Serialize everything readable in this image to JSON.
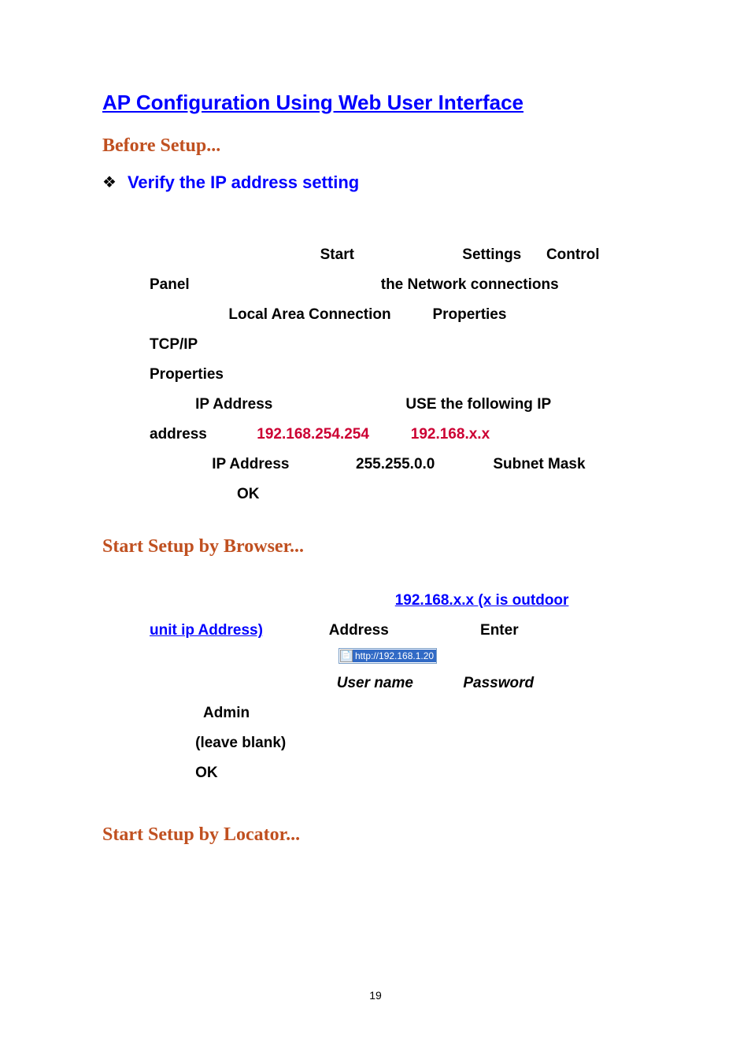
{
  "heading": {
    "main": "AP Configuration Using Web User Interface",
    "before_setup": "Before Setup...",
    "verify_ip": "Verify the IP address setting",
    "start_browser": "Start Setup by Browser...",
    "start_locator": "Start Setup by Locator..."
  },
  "instructions1": {
    "word_start": "Start",
    "word_settings": "Settings",
    "word_control": "Control",
    "word_panel": "Panel",
    "word_network": "the Network connections",
    "word_lac": "Local Area Connection",
    "word_properties": "Properties",
    "word_tcpip": "TCP/IP",
    "word_properties2": "Properties",
    "word_ipaddr": "IP Address",
    "word_usefollow": "USE the following IP",
    "word_address": "address",
    "ip1": "192.168.254.254",
    "ip2": "192.168.x.x",
    "word_ipaddr2": "IP Address",
    "mask": "255.255.0.0",
    "word_subnet": "Subnet Mask",
    "word_ok": "OK"
  },
  "instructions2": {
    "link_part1": "192.168.x.x (x is outdoor",
    "link_part2": "unit ip Address)",
    "word_address": "Address",
    "word_enter": "Enter",
    "word_username": "User name",
    "word_password": "Password",
    "word_admin": "Admin",
    "word_blank": "(leave blank)",
    "word_ok": "OK"
  },
  "url_bar": {
    "text": "http://192.168.1.20"
  },
  "page_number": "19",
  "colors": {
    "heading_blue": "#0000ff",
    "section_orange": "#c05020",
    "ip_red": "#cc0033",
    "text_black": "#000000",
    "url_bg": "#316ac5"
  }
}
